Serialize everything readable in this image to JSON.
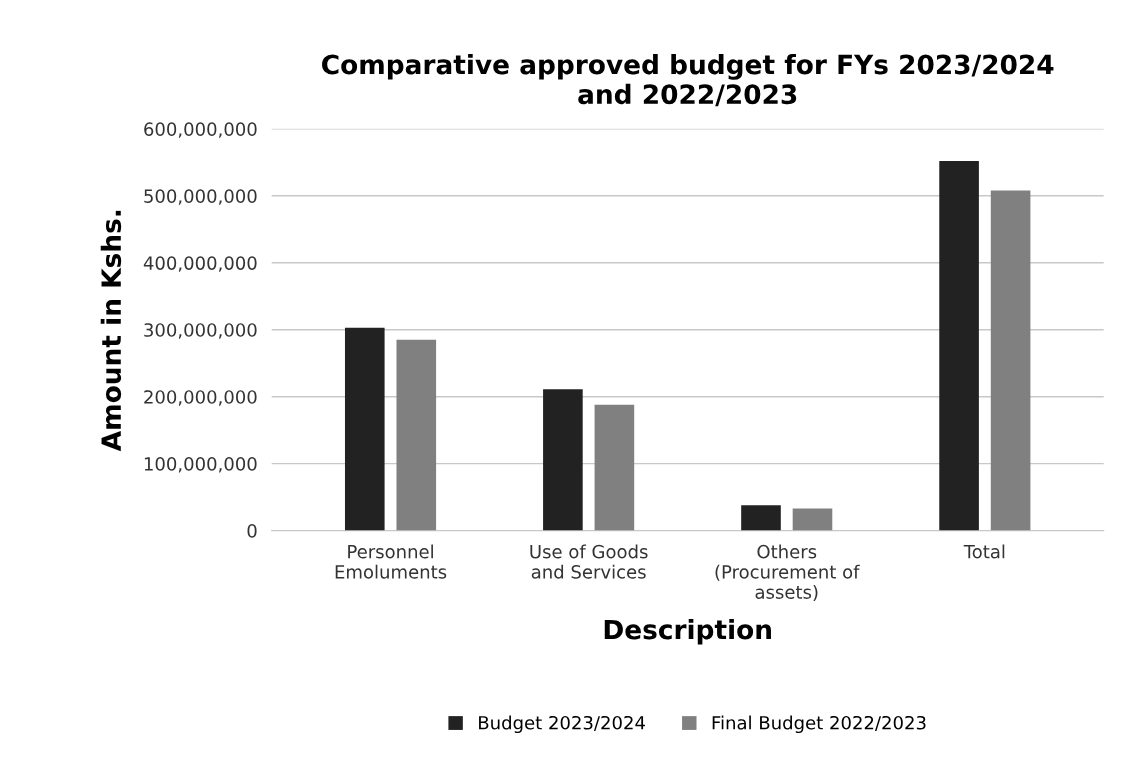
{
  "chart_data": {
    "type": "bar",
    "title": "Comparative approved budget for FYs 2023/2024\nand 2022/2023",
    "xlabel": "Description",
    "ylabel": "Amount in Kshs.",
    "categories": [
      "Personnel\nEmoluments",
      "Use of Goods\nand Services",
      "Others\n(Procurement of\nassets)",
      "Total"
    ],
    "series": [
      {
        "name": "Budget 2023/2024",
        "color": "#222222",
        "values": [
          303000000,
          211000000,
          38000000,
          552000000
        ]
      },
      {
        "name": "Final Budget 2022/2023",
        "color": "#808080",
        "values": [
          285000000,
          188000000,
          33000000,
          508000000
        ]
      }
    ],
    "ylim": [
      0,
      600000000
    ],
    "yticks": [
      {
        "value": 0,
        "label": "0"
      },
      {
        "value": 100000000,
        "label": "100,000,000"
      },
      {
        "value": 200000000,
        "label": "200,000,000"
      },
      {
        "value": 300000000,
        "label": "300,000,000"
      },
      {
        "value": 400000000,
        "label": "400,000,000"
      },
      {
        "value": 500000000,
        "label": "500,000,000"
      },
      {
        "value": 600000000,
        "label": "600,000,000"
      }
    ],
    "grid": "y",
    "legend": "bottom"
  }
}
